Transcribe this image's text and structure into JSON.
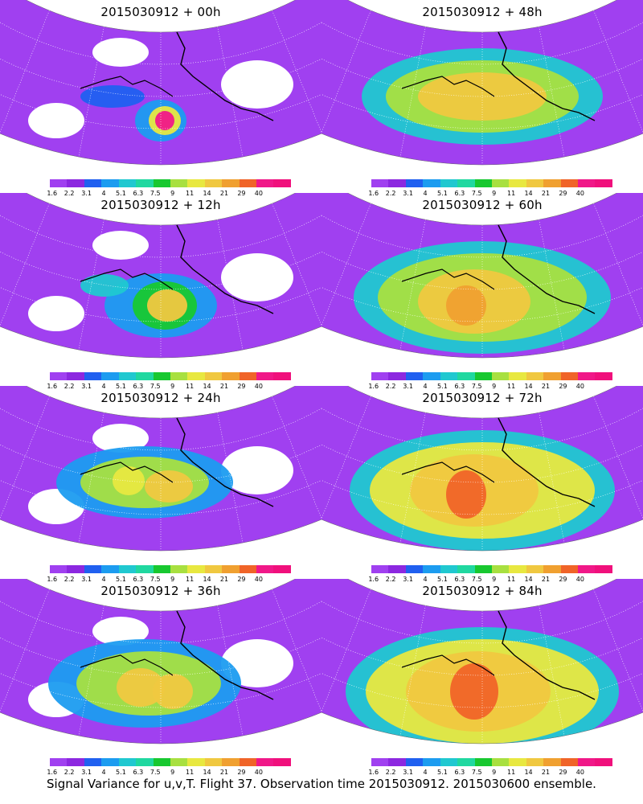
{
  "colorbar": {
    "labels": [
      "1.6",
      "2.2",
      "3.1",
      "4",
      "5.1",
      "6.3",
      "7.5",
      "9",
      "11",
      "14",
      "21",
      "29",
      "40"
    ],
    "colors": [
      "#a040f0",
      "#8c28e0",
      "#2060f0",
      "#1c9cf0",
      "#20c8d0",
      "#20d8a0",
      "#18c830",
      "#a8e040",
      "#e8e840",
      "#f0c840",
      "#f0a030",
      "#f06428",
      "#f01888",
      "#f0107c"
    ]
  },
  "panels": [
    {
      "id": "p00",
      "title": "2015030912 + 00h"
    },
    {
      "id": "p48",
      "title": "2015030912 + 48h"
    },
    {
      "id": "p12",
      "title": "2015030912 + 12h"
    },
    {
      "id": "p60",
      "title": "2015030912 + 60h"
    },
    {
      "id": "p24",
      "title": "2015030912 + 24h"
    },
    {
      "id": "p72",
      "title": "2015030912 + 72h"
    },
    {
      "id": "p36",
      "title": "2015030912 + 36h"
    },
    {
      "id": "p84",
      "title": "2015030912 + 84h"
    }
  ],
  "caption": "Signal Variance for u,v,T. Flight 37. Observation time 2015030912. 2015030600 ensemble."
}
